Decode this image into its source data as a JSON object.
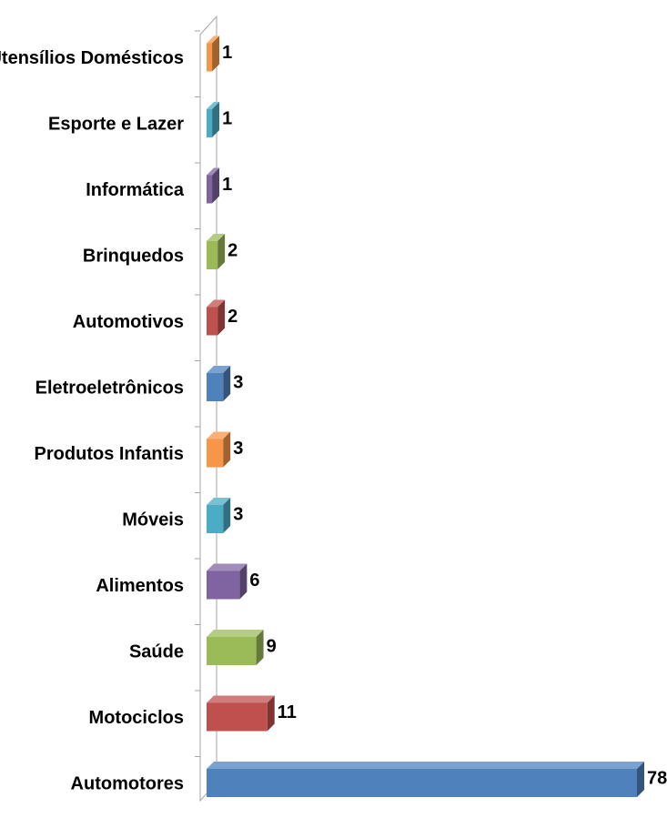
{
  "chart_data": {
    "type": "bar",
    "orientation": "horizontal",
    "style": "3d",
    "categories": [
      "Utensílios Domésticos",
      "Esporte e Lazer",
      "Informática",
      "Brinquedos",
      "Automotivos",
      "Eletroeletrônicos",
      "Produtos Infantis",
      "Móveis",
      "Alimentos",
      "Saúde",
      "Motociclos",
      "Automotores"
    ],
    "values": [
      1,
      1,
      1,
      2,
      2,
      3,
      3,
      3,
      6,
      9,
      11,
      78
    ],
    "colors": [
      "#f79646",
      "#4bacc6",
      "#8064a2",
      "#9bbb59",
      "#c0504d",
      "#4f81bd",
      "#f79646",
      "#4bacc6",
      "#8064a2",
      "#9bbb59",
      "#c0504d",
      "#4f81bd"
    ],
    "title": "",
    "xlabel": "",
    "ylabel": "",
    "xlim": [
      0,
      78
    ],
    "grid": false,
    "legend": "none",
    "data_labels": true
  }
}
